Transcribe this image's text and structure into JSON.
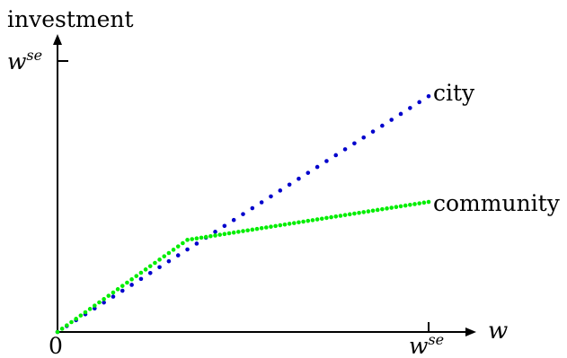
{
  "chart_data": {
    "type": "scatter",
    "ylabel": "investment",
    "xlabel": "w",
    "xlim": [
      0,
      1
    ],
    "ylim": [
      0,
      1
    ],
    "x_ticks": [
      {
        "value": 0,
        "label": "0"
      },
      {
        "value": 1,
        "label": "w",
        "sup": "se"
      }
    ],
    "y_ticks": [
      {
        "value": 1,
        "label": "w",
        "sup": "se"
      }
    ],
    "series": [
      {
        "name": "city",
        "color": "#0000cc",
        "x_start": 0,
        "x_end": 1,
        "count": 41,
        "points": [
          [
            0,
            0
          ],
          [
            1,
            0.87
          ]
        ]
      },
      {
        "name": "community",
        "color": "#00ee00",
        "x_start": 0,
        "x_end": 1,
        "count": 81,
        "points": [
          [
            0,
            0
          ],
          [
            0.35,
            0.34
          ],
          [
            1,
            0.48
          ]
        ]
      }
    ]
  }
}
